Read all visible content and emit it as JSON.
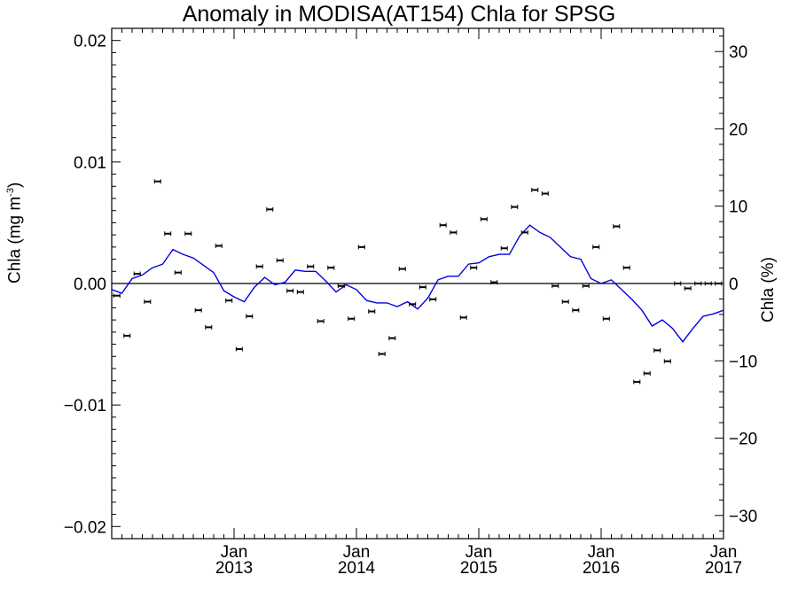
{
  "chart_data": {
    "type": "line",
    "title": "Anomaly in MODISA(AT154) Chla for SPSG",
    "ylabel": "Chla (mg m",
    "ylabel_sup": "-3",
    "ylabel_close": ")",
    "y2label": "Chla (%)",
    "ylim": [
      -0.021,
      0.021
    ],
    "y2lim": [
      -33,
      33
    ],
    "xlim": [
      2012.0,
      2017.0
    ],
    "yticks": [
      -0.02,
      -0.01,
      0.0,
      0.01,
      0.02
    ],
    "ytick_labels": [
      "−0.02",
      "−0.01",
      "0.00",
      "0.01",
      "0.02"
    ],
    "y2ticks": [
      -30,
      -20,
      -10,
      0,
      10,
      20,
      30
    ],
    "y2tick_labels": [
      "−30",
      "−20",
      "−10",
      "0",
      "10",
      "20",
      "30"
    ],
    "xticks": [
      2013.0,
      2014.0,
      2015.0,
      2016.0,
      2017.0
    ],
    "xtick_month": "Jan",
    "xtick_years": [
      "2013",
      "2014",
      "2015",
      "2016",
      "2017"
    ],
    "grid": false,
    "zero_line": true,
    "line_color": "#0000dd",
    "marker_color": "#000000",
    "series": [
      {
        "kind": "line",
        "x": [
          2012.0,
          2012.083,
          2012.167,
          2012.25,
          2012.333,
          2012.417,
          2012.5,
          2012.583,
          2012.667,
          2012.75,
          2012.833,
          2012.917,
          2013.0,
          2013.083,
          2013.167,
          2013.25,
          2013.333,
          2013.417,
          2013.5,
          2013.583,
          2013.667,
          2013.75,
          2013.833,
          2013.917,
          2014.0,
          2014.083,
          2014.167,
          2014.25,
          2014.333,
          2014.417,
          2014.5,
          2014.583,
          2014.667,
          2014.75,
          2014.833,
          2014.917,
          2015.0,
          2015.083,
          2015.167,
          2015.25,
          2015.333,
          2015.417,
          2015.5,
          2015.583,
          2015.667,
          2015.75,
          2015.833,
          2015.917,
          2016.0,
          2016.083,
          2016.167,
          2016.25,
          2016.333,
          2016.417,
          2016.5,
          2016.583,
          2016.667,
          2016.75,
          2016.833,
          2016.917,
          2017.0
        ],
        "y": [
          -0.0005,
          -0.0008,
          0.0004,
          0.0007,
          0.0013,
          0.0016,
          0.0028,
          0.0024,
          0.0021,
          0.0015,
          0.0009,
          -0.0006,
          -0.0011,
          -0.0015,
          -0.0003,
          0.0005,
          -0.0001,
          0.0001,
          0.0011,
          0.001,
          0.001,
          0.0002,
          -0.0007,
          -0.0001,
          -0.0005,
          -0.0014,
          -0.0016,
          -0.0016,
          -0.0019,
          -0.0015,
          -0.0021,
          -0.0012,
          0.0003,
          0.0006,
          0.0006,
          0.0016,
          0.0017,
          0.0022,
          0.0024,
          0.0024,
          0.0039,
          0.0048,
          0.0042,
          0.0038,
          0.003,
          0.0022,
          0.002,
          0.0004,
          0.0,
          0.0003,
          -0.0005,
          -0.0013,
          -0.0022,
          -0.0035,
          -0.003,
          -0.0037,
          -0.0048,
          -0.0037,
          -0.0027,
          -0.0025,
          -0.0022
        ]
      },
      {
        "kind": "errorbar-markers",
        "x": [
          2012.042,
          2012.125,
          2012.208,
          2012.292,
          2012.375,
          2012.458,
          2012.542,
          2012.625,
          2012.708,
          2012.792,
          2012.875,
          2012.958,
          2013.042,
          2013.125,
          2013.208,
          2013.292,
          2013.375,
          2013.458,
          2013.542,
          2013.625,
          2013.708,
          2013.792,
          2013.875,
          2013.958,
          2014.042,
          2014.125,
          2014.208,
          2014.292,
          2014.375,
          2014.458,
          2014.542,
          2014.625,
          2014.708,
          2014.792,
          2014.875,
          2014.958,
          2015.042,
          2015.125,
          2015.208,
          2015.292,
          2015.375,
          2015.458,
          2015.542,
          2015.625,
          2015.708,
          2015.792,
          2015.875,
          2015.958,
          2016.042,
          2016.125,
          2016.208,
          2016.292,
          2016.375,
          2016.458,
          2016.542,
          2016.625,
          2016.708,
          2016.792,
          2016.875,
          2016.958
        ],
        "y": [
          -0.001,
          -0.0043,
          0.0008,
          -0.0015,
          0.0084,
          0.0041,
          0.0009,
          0.0041,
          -0.0022,
          -0.0036,
          0.0031,
          -0.0014,
          -0.0054,
          -0.0027,
          0.0014,
          0.0061,
          0.0019,
          -0.0006,
          -0.0007,
          0.0014,
          -0.0031,
          0.0013,
          -0.0002,
          -0.0029,
          0.003,
          -0.0023,
          -0.0058,
          -0.0045,
          0.0012,
          -0.0017,
          -0.0003,
          -0.0013,
          0.0048,
          0.0042,
          -0.0028,
          0.0013,
          0.0053,
          0.0001,
          0.0029,
          0.0063,
          0.0042,
          0.0077,
          0.0074,
          -0.0002,
          -0.0015,
          -0.0022,
          -0.0002,
          0.003,
          -0.0029,
          0.0047,
          0.0013,
          -0.0081,
          -0.0074,
          -0.0055,
          -0.0064,
          0.0,
          -0.0004,
          0.0,
          0.0,
          0.0
        ]
      }
    ]
  }
}
